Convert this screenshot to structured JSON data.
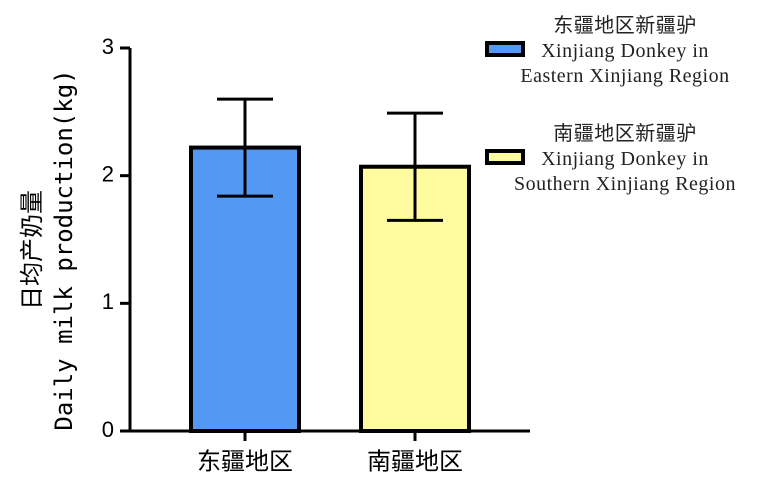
{
  "chart_data": {
    "type": "bar",
    "ylabel": "日均产奶量\nDaily milk production(kg)",
    "categories": [
      "东疆地区",
      "南疆地区"
    ],
    "values": [
      2.22,
      2.07
    ],
    "errors": [
      0.38,
      0.42
    ],
    "colors": [
      "#5399f3",
      "#fffb9f"
    ],
    "legend": [
      "东疆地区新疆驴\nXinjiang Donkey in\nEastern Xinjiang Region",
      "南疆地区新疆驴\nXinjiang Donkey in\nSouthern Xinjiang Region"
    ],
    "legend_position": "upper right",
    "ylim": [
      0,
      3
    ],
    "yticks": [
      0,
      1,
      2,
      3
    ],
    "grid": false
  }
}
